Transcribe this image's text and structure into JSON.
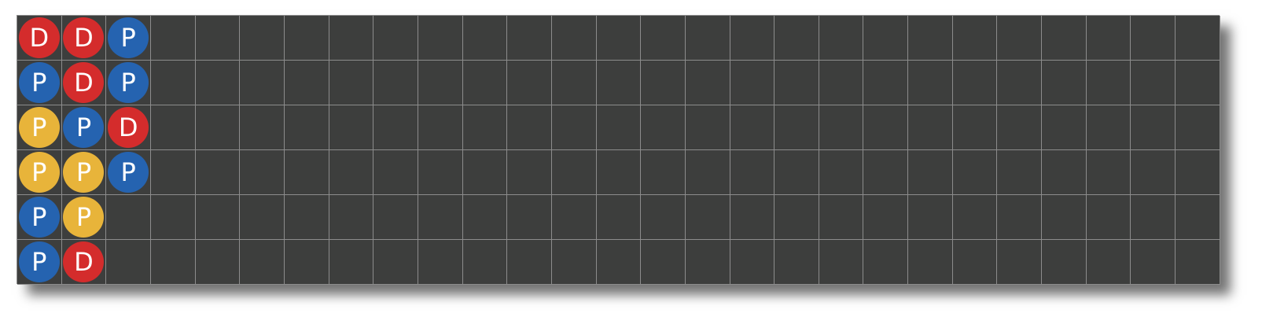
{
  "board": {
    "rows": 6,
    "columns": 27,
    "colors": {
      "D": "#d42c2c",
      "P_blue": "#2563b0",
      "P_yellow": "#e8b43a",
      "background": "#3d3e3d",
      "gridline": "#8c8c8c"
    },
    "beads": [
      {
        "row": 0,
        "col": 0,
        "label": "D",
        "color": "#d42c2c"
      },
      {
        "row": 0,
        "col": 1,
        "label": "D",
        "color": "#d42c2c"
      },
      {
        "row": 0,
        "col": 2,
        "label": "P",
        "color": "#2563b0"
      },
      {
        "row": 1,
        "col": 0,
        "label": "P",
        "color": "#2563b0"
      },
      {
        "row": 1,
        "col": 1,
        "label": "D",
        "color": "#d42c2c"
      },
      {
        "row": 1,
        "col": 2,
        "label": "P",
        "color": "#2563b0"
      },
      {
        "row": 2,
        "col": 0,
        "label": "P",
        "color": "#e8b43a"
      },
      {
        "row": 2,
        "col": 1,
        "label": "P",
        "color": "#2563b0"
      },
      {
        "row": 2,
        "col": 2,
        "label": "D",
        "color": "#d42c2c"
      },
      {
        "row": 3,
        "col": 0,
        "label": "P",
        "color": "#e8b43a"
      },
      {
        "row": 3,
        "col": 1,
        "label": "P",
        "color": "#e8b43a"
      },
      {
        "row": 3,
        "col": 2,
        "label": "P",
        "color": "#2563b0"
      },
      {
        "row": 4,
        "col": 0,
        "label": "P",
        "color": "#2563b0"
      },
      {
        "row": 4,
        "col": 1,
        "label": "P",
        "color": "#e8b43a"
      },
      {
        "row": 5,
        "col": 0,
        "label": "P",
        "color": "#2563b0"
      },
      {
        "row": 5,
        "col": 1,
        "label": "D",
        "color": "#d42c2c"
      }
    ]
  }
}
